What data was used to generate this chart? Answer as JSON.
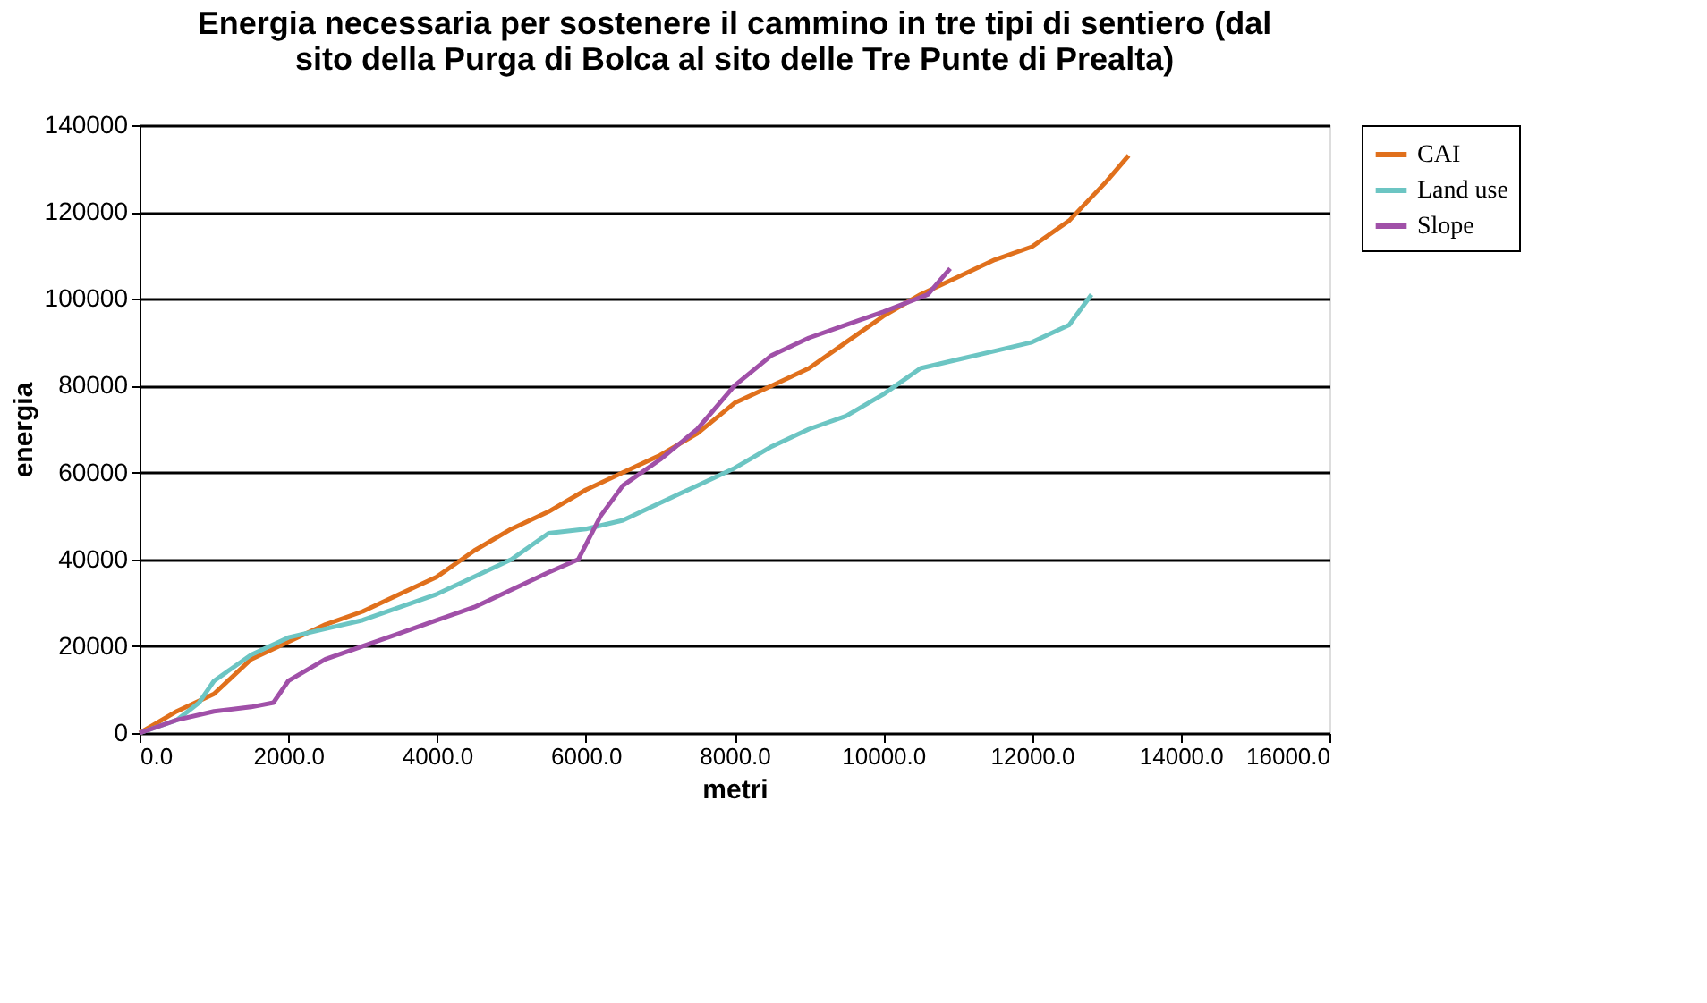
{
  "chart_data": {
    "type": "line",
    "title": [
      "Energia necessaria per sostenere il cammino in tre tipi di sentiero (dal",
      "sito della Purga di Bolca al sito delle Tre Punte di Prealta)"
    ],
    "xlabel": "metri",
    "ylabel": "energia",
    "xlim": [
      0,
      16000
    ],
    "xticks": [
      {
        "value": 0,
        "label": "0.0"
      },
      {
        "value": 2000,
        "label": "2000.0"
      },
      {
        "value": 4000,
        "label": "4000.0"
      },
      {
        "value": 6000,
        "label": "6000.0"
      },
      {
        "value": 8000,
        "label": "8000.0"
      },
      {
        "value": 10000,
        "label": "10000.0"
      },
      {
        "value": 12000,
        "label": "12000.0"
      },
      {
        "value": 14000,
        "label": "14000.0"
      },
      {
        "value": 16000,
        "label": "16000.0"
      }
    ],
    "ylim": [
      0,
      140000
    ],
    "yticks": [
      0,
      20000,
      40000,
      60000,
      80000,
      100000,
      120000,
      140000
    ],
    "grid": "y",
    "legend": "right",
    "line_style": "solid",
    "marker": "none",
    "series": [
      {
        "name": "CAI",
        "color": "#e0701c",
        "x": [
          0,
          500,
          1000,
          1500,
          2000,
          2500,
          3000,
          3500,
          4000,
          4500,
          5000,
          5500,
          6000,
          6500,
          7000,
          7500,
          8000,
          8500,
          9000,
          9500,
          10000,
          10500,
          11000,
          11500,
          12000,
          12500,
          13000,
          13300
        ],
        "values": [
          0,
          5000,
          9000,
          17000,
          21000,
          25000,
          28000,
          32000,
          36000,
          42000,
          47000,
          51000,
          56000,
          60000,
          64000,
          69000,
          76000,
          80000,
          84000,
          90000,
          96000,
          101000,
          105000,
          109000,
          112000,
          118000,
          127000,
          133000
        ]
      },
      {
        "name": "Land use",
        "color": "#6cc5c3",
        "x": [
          0,
          500,
          800,
          1000,
          1500,
          2000,
          2500,
          3000,
          3500,
          4000,
          4500,
          5000,
          5500,
          6000,
          6500,
          7000,
          7500,
          8000,
          8500,
          9000,
          9500,
          10000,
          10500,
          11000,
          11500,
          12000,
          12500,
          12800
        ],
        "values": [
          0,
          3000,
          7000,
          12000,
          18000,
          22000,
          24000,
          26000,
          29000,
          32000,
          36000,
          40000,
          46000,
          47000,
          49000,
          53000,
          57000,
          61000,
          66000,
          70000,
          73000,
          78000,
          84000,
          86000,
          88000,
          90000,
          94000,
          101000
        ]
      },
      {
        "name": "Slope",
        "color": "#a050a8",
        "x": [
          0,
          500,
          1000,
          1500,
          1800,
          2000,
          2500,
          3000,
          3500,
          4000,
          4500,
          5000,
          5500,
          5900,
          6200,
          6500,
          7000,
          7500,
          7800,
          8000,
          8500,
          9000,
          9500,
          10000,
          10300,
          10600,
          10900
        ],
        "values": [
          0,
          3000,
          5000,
          6000,
          7000,
          12000,
          17000,
          20000,
          23000,
          26000,
          29000,
          33000,
          37000,
          40000,
          50000,
          57000,
          63000,
          70000,
          76000,
          80000,
          87000,
          91000,
          94000,
          97000,
          99000,
          101000,
          107000
        ]
      }
    ]
  }
}
